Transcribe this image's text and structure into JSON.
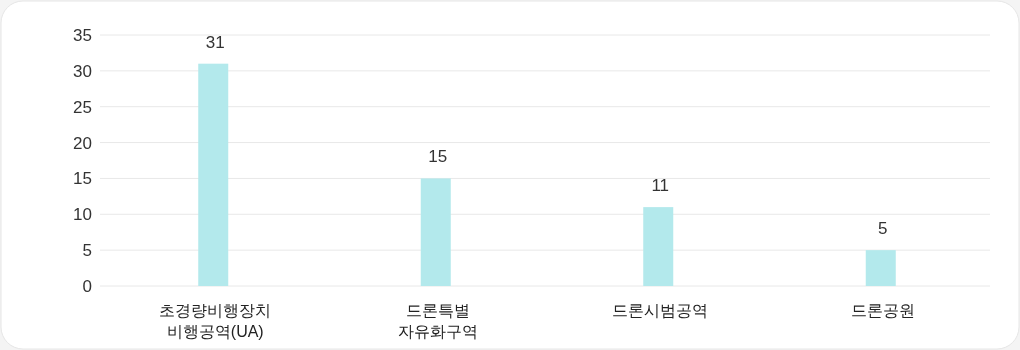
{
  "chart_data": {
    "type": "bar",
    "categories": [
      "초경량비행장치\n비행공역(UA)",
      "드론특별\n자유화구역",
      "드론시범공역",
      "드론공원"
    ],
    "values": [
      31,
      15,
      11,
      5
    ],
    "color": "#b3e9ec",
    "ylim": [
      0,
      35
    ],
    "yticks": [
      0,
      5,
      10,
      15,
      20,
      25,
      30,
      35
    ],
    "grid": "y",
    "data_labels": true
  }
}
